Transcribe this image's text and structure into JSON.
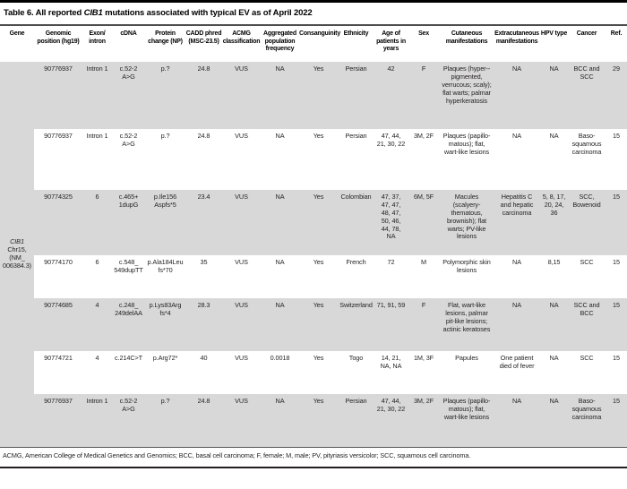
{
  "title": {
    "prefix": "Table 6. All reported ",
    "gene": "CIB1",
    "suffix": " mutations associated with typical EV as of April 2022"
  },
  "colors": {
    "row_stripe": "#d8d8d8"
  },
  "table": {
    "columns": [
      "Gene",
      "Genomic position (hg19)",
      "Exon/ intron",
      "cDNA",
      "Protein change (NP)",
      "CADD phred (MSC-23.5)",
      "ACMG classification",
      "Aggregated population frequency",
      "Consanguinity",
      "Ethnicity",
      "Age of patients in years",
      "Sex",
      "Cutaneous manifestations",
      "Extracutaneous manifestations",
      "HPV type",
      "Cancer",
      "Ref."
    ],
    "gene": {
      "name": "CIB1",
      "location": "Chr15, (NM_ 006384.3)"
    },
    "rows": [
      {
        "cells": [
          "90776937",
          "Intron 1",
          "c.52-2 A>G",
          "p.?",
          "24.8",
          "VUS",
          "NA",
          "Yes",
          "Persian",
          "42",
          "F",
          "Plaques (hyper--pigmented, verrucous; scaly); flat warts; palmar hyperkeratosis",
          "NA",
          "NA",
          "BCC and SCC",
          "29"
        ]
      },
      {
        "cells": [
          "90776937",
          "Intron 1",
          "c.52-2 A>G",
          "p.?",
          "24.8",
          "VUS",
          "NA",
          "Yes",
          "Persian",
          "47, 44, 21, 30, 22",
          "3M, 2F",
          "Plaques (papillo-matous); flat, wart-like lesions",
          "NA",
          "NA",
          "Baso-squamous carcinoma",
          "15"
        ]
      },
      {
        "cells": [
          "90774325",
          "6",
          "c.465+ 1dupG",
          "p.Ile156 Aspfs*5",
          "23.4",
          "VUS",
          "NA",
          "Yes",
          "Colombian",
          "47, 37, 47, 47, 48, 47, 50, 46, 44, 78, NA",
          "6M, 5F",
          "Macules (scalyery-thematous, brownish); flat warts; PV-like lesions",
          "Hepatitis C and hepatic carcinoma",
          "5, 8, 17, 20, 24, 36",
          "SCC, Bowenoid",
          "15"
        ]
      },
      {
        "cells": [
          "90774170",
          "6",
          "c.548_ 549dupTT",
          "p.Ala184Leu fs*70",
          "35",
          "VUS",
          "NA",
          "Yes",
          "French",
          "72",
          "M",
          "Polymorphic skin lesions",
          "NA",
          "8,15",
          "SCC",
          "15"
        ]
      },
      {
        "cells": [
          "90774685",
          "4",
          "c.248_ 249delAA",
          "p.Lys83Arg fs*4",
          "28.3",
          "VUS",
          "NA",
          "Yes",
          "Switzerland",
          "71, 91, 59",
          "F",
          "Flat, wart-like lesions, palmar pit-like lesions; actinic keratoses",
          "NA",
          "NA",
          "SCC and BCC",
          "15"
        ]
      },
      {
        "cells": [
          "90774721",
          "4",
          "c.214C>T",
          "p.Arg72*",
          "40",
          "VUS",
          "0.0018",
          "Yes",
          "Togo",
          "14, 21, NA, NA",
          "1M, 3F",
          "Papules",
          "One patient died of fever",
          "NA",
          "SCC",
          "15"
        ]
      },
      {
        "cells": [
          "90776937",
          "Intron 1",
          "c.52-2 A>G",
          "p.?",
          "24.8",
          "VUS",
          "NA",
          "Yes",
          "Persian",
          "47, 44, 21, 30, 22",
          "3M, 2F",
          "Plaques (papillo-matous); flat, wart-like lesions",
          "NA",
          "NA",
          "Baso-squamous carcinoma",
          "15"
        ]
      }
    ]
  },
  "footnote": "ACMG, American College of Medical Genetics and Genomics; BCC, basal cell carcinoma; F, female; M, male; PV, pityriasis versicolor; SCC, squamous cell carcinoma."
}
